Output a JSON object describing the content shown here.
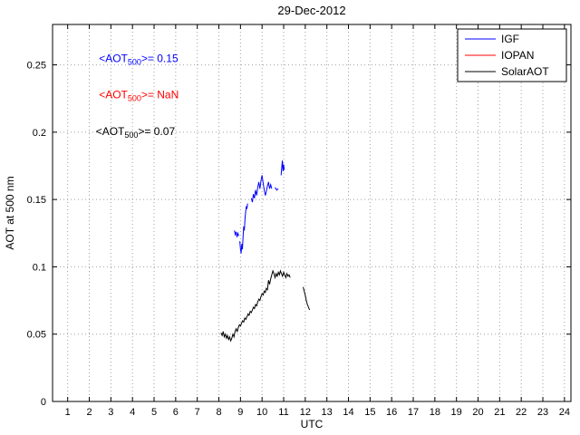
{
  "chart_data": {
    "type": "line",
    "title": "29-Dec-2012",
    "xlabel": "UTC",
    "ylabel": "AOT at 500 nm",
    "xlim": [
      0.3,
      24.3
    ],
    "ylim": [
      0,
      0.28
    ],
    "grid": true,
    "xticks": [
      1,
      2,
      3,
      4,
      5,
      6,
      7,
      8,
      9,
      10,
      11,
      12,
      13,
      14,
      15,
      16,
      17,
      18,
      19,
      20,
      21,
      22,
      23,
      24
    ],
    "yticks": [
      0,
      0.05,
      0.1,
      0.15,
      0.2,
      0.25
    ],
    "ytick_labels": [
      "0",
      "0.05",
      "0.1",
      "0.15",
      "0.2",
      "0.25"
    ],
    "legend": {
      "position": "top-right",
      "entries": [
        {
          "label": "IGF",
          "color": "#0000ff"
        },
        {
          "label": "IOPAN",
          "color": "#ff0000"
        },
        {
          "label": "SolarAOT",
          "color": "#000000"
        }
      ]
    },
    "annotations": [
      {
        "prefix": "<AOT",
        "sub": "500",
        "suffix": ">= 0.15",
        "color": "#0000ff",
        "x": 2.45,
        "y": 0.252
      },
      {
        "prefix": "<AOT",
        "sub": "500",
        "suffix": ">=  NaN",
        "color": "#ff0000",
        "x": 2.45,
        "y": 0.225
      },
      {
        "prefix": "<AOT",
        "sub": "500",
        "suffix": ">= 0.07",
        "color": "#000000",
        "x": 2.3,
        "y": 0.198
      }
    ],
    "series": [
      {
        "name": "IGF",
        "color": "#0000ff",
        "segments": [
          [
            [
              8.72,
              0.127
            ],
            [
              8.76,
              0.124
            ],
            [
              8.8,
              0.126
            ],
            [
              8.84,
              0.122
            ],
            [
              8.88,
              0.125
            ],
            [
              8.92,
              0.123
            ]
          ],
          [
            [
              8.97,
              0.119
            ],
            [
              9.0,
              0.113
            ],
            [
              9.03,
              0.11
            ],
            [
              9.06,
              0.117
            ],
            [
              9.09,
              0.113
            ],
            [
              9.12,
              0.122
            ],
            [
              9.15,
              0.13
            ],
            [
              9.18,
              0.127
            ],
            [
              9.21,
              0.136
            ],
            [
              9.24,
              0.141
            ],
            [
              9.27,
              0.145
            ],
            [
              9.3,
              0.143
            ],
            [
              9.33,
              0.147
            ]
          ],
          [
            [
              9.5,
              0.151
            ],
            [
              9.55,
              0.148
            ],
            [
              9.6,
              0.154
            ],
            [
              9.65,
              0.151
            ],
            [
              9.7,
              0.157
            ],
            [
              9.75,
              0.153
            ],
            [
              9.8,
              0.159
            ],
            [
              9.85,
              0.163
            ],
            [
              9.9,
              0.158
            ],
            [
              9.95,
              0.164
            ],
            [
              10.0,
              0.168
            ],
            [
              10.05,
              0.162
            ],
            [
              10.1,
              0.157
            ],
            [
              10.15,
              0.153
            ],
            [
              10.2,
              0.156
            ],
            [
              10.25,
              0.16
            ],
            [
              10.3,
              0.163
            ],
            [
              10.35,
              0.158
            ],
            [
              10.4,
              0.161
            ],
            [
              10.45,
              0.158
            ]
          ],
          [
            [
              10.6,
              0.159
            ],
            [
              10.68,
              0.157
            ],
            [
              10.75,
              0.158
            ]
          ],
          [
            [
              10.88,
              0.168
            ],
            [
              10.91,
              0.174
            ],
            [
              10.94,
              0.179
            ],
            [
              10.97,
              0.171
            ],
            [
              11.0,
              0.176
            ],
            [
              11.03,
              0.172
            ]
          ]
        ]
      },
      {
        "name": "IOPAN",
        "color": "#ff0000",
        "segments": []
      },
      {
        "name": "SolarAOT",
        "color": "#000000",
        "segments": [
          [
            [
              8.1,
              0.051
            ],
            [
              8.15,
              0.049
            ],
            [
              8.2,
              0.052
            ],
            [
              8.25,
              0.048
            ],
            [
              8.3,
              0.05
            ],
            [
              8.35,
              0.047
            ],
            [
              8.4,
              0.049
            ],
            [
              8.45,
              0.046
            ],
            [
              8.5,
              0.048
            ],
            [
              8.55,
              0.045
            ],
            [
              8.6,
              0.047
            ],
            [
              8.65,
              0.05
            ],
            [
              8.7,
              0.048
            ],
            [
              8.75,
              0.052
            ],
            [
              8.8,
              0.054
            ],
            [
              8.85,
              0.052
            ],
            [
              8.9,
              0.055
            ],
            [
              8.95,
              0.057
            ],
            [
              9.0,
              0.056
            ],
            [
              9.05,
              0.058
            ],
            [
              9.1,
              0.06
            ],
            [
              9.15,
              0.059
            ],
            [
              9.2,
              0.062
            ],
            [
              9.25,
              0.061
            ],
            [
              9.3,
              0.063
            ],
            [
              9.35,
              0.065
            ],
            [
              9.4,
              0.064
            ],
            [
              9.45,
              0.067
            ],
            [
              9.5,
              0.066
            ],
            [
              9.55,
              0.068
            ],
            [
              9.6,
              0.07
            ],
            [
              9.65,
              0.069
            ],
            [
              9.7,
              0.072
            ],
            [
              9.75,
              0.071
            ],
            [
              9.8,
              0.074
            ],
            [
              9.85,
              0.076
            ],
            [
              9.9,
              0.075
            ],
            [
              9.95,
              0.078
            ],
            [
              10.0,
              0.08
            ],
            [
              10.05,
              0.079
            ],
            [
              10.1,
              0.082
            ],
            [
              10.15,
              0.081
            ],
            [
              10.2,
              0.084
            ],
            [
              10.25,
              0.083
            ],
            [
              10.3,
              0.09
            ],
            [
              10.35,
              0.087
            ],
            [
              10.4,
              0.091
            ],
            [
              10.45,
              0.094
            ],
            [
              10.5,
              0.097
            ],
            [
              10.55,
              0.095
            ],
            [
              10.6,
              0.092
            ],
            [
              10.65,
              0.095
            ],
            [
              10.7,
              0.093
            ],
            [
              10.75,
              0.096
            ],
            [
              10.8,
              0.094
            ],
            [
              10.85,
              0.097
            ],
            [
              10.9,
              0.095
            ],
            [
              10.95,
              0.093
            ],
            [
              11.0,
              0.096
            ],
            [
              11.05,
              0.094
            ],
            [
              11.1,
              0.092
            ],
            [
              11.15,
              0.095
            ],
            [
              11.2,
              0.093
            ],
            [
              11.25,
              0.094
            ],
            [
              11.3,
              0.092
            ]
          ],
          [
            [
              11.9,
              0.085
            ],
            [
              11.95,
              0.082
            ],
            [
              12.0,
              0.079
            ],
            [
              12.05,
              0.075
            ],
            [
              12.1,
              0.072
            ],
            [
              12.15,
              0.07
            ],
            [
              12.2,
              0.068
            ]
          ]
        ]
      }
    ]
  }
}
